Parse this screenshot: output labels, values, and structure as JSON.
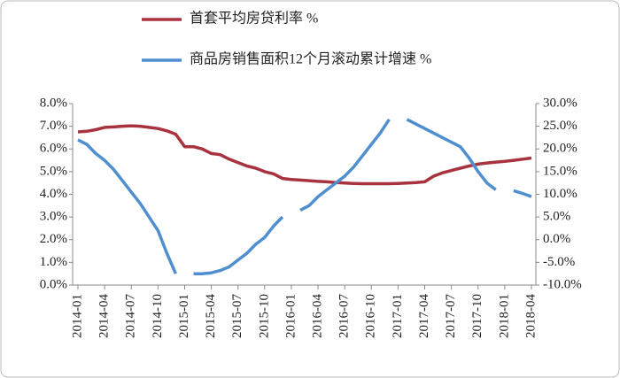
{
  "chart_data": {
    "type": "line",
    "categories": [
      "2014-01",
      null,
      null,
      "2014-04",
      null,
      null,
      "2014-07",
      null,
      null,
      "2014-10",
      null,
      null,
      "2015-01",
      null,
      null,
      "2015-04",
      null,
      null,
      "2015-07",
      null,
      null,
      "2015-10",
      null,
      null,
      "2016-01",
      null,
      null,
      "2016-04",
      null,
      null,
      "2016-07",
      null,
      null,
      "2016-10",
      null,
      null,
      "2017-01",
      null,
      null,
      "2017-04",
      null,
      null,
      "2017-07",
      null,
      null,
      "2017-10",
      null,
      null,
      "2018-01",
      null,
      null,
      "2018-04"
    ],
    "series": [
      {
        "name": "首套平均房贷利率 %",
        "color": "#a8323e",
        "axis": "y",
        "values": [
          6.75,
          6.78,
          6.85,
          6.95,
          6.97,
          7.0,
          7.02,
          7.0,
          6.95,
          6.9,
          6.8,
          6.65,
          6.1,
          6.1,
          6.0,
          5.8,
          5.75,
          5.55,
          5.4,
          5.25,
          5.15,
          5.0,
          4.9,
          4.7,
          4.65,
          4.63,
          4.6,
          4.57,
          4.55,
          4.52,
          4.5,
          4.48,
          4.47,
          4.47,
          4.47,
          4.47,
          4.48,
          4.5,
          4.52,
          4.55,
          4.8,
          4.95,
          5.05,
          5.15,
          5.25,
          5.33,
          5.38,
          5.42,
          5.45,
          5.5,
          5.55,
          5.6
        ]
      },
      {
        "name": "商品房销售面积12个月滚动累计增速 %",
        "color": "#4f8fd0",
        "axis": "y2",
        "values": [
          22,
          21,
          19,
          17.5,
          15.5,
          13,
          10.5,
          8,
          5,
          2,
          -3,
          -7.5,
          null,
          -7.5,
          -7.5,
          -7.3,
          -6.8,
          -6,
          -4.5,
          -3,
          -1,
          0.5,
          3,
          5,
          null,
          6.5,
          7.5,
          9.5,
          11,
          12.5,
          14,
          16,
          18.5,
          21,
          23.5,
          26.5,
          null,
          26.5,
          25.5,
          24.5,
          23.5,
          22.5,
          21.5,
          20.5,
          18,
          15,
          12.5,
          11,
          null,
          10.8,
          10.2,
          9.5
        ]
      }
    ],
    "ylim": [
      0,
      8
    ],
    "yticks": [
      {
        "value": 0,
        "label": "0.0%"
      },
      {
        "value": 1,
        "label": "1.0%"
      },
      {
        "value": 2,
        "label": "2.0%"
      },
      {
        "value": 3,
        "label": "3.0%"
      },
      {
        "value": 4,
        "label": "4.0%"
      },
      {
        "value": 5,
        "label": "5.0%"
      },
      {
        "value": 6,
        "label": "6.0%"
      },
      {
        "value": 7,
        "label": "7.0%"
      },
      {
        "value": 8,
        "label": "8.0%"
      }
    ],
    "y2lim": [
      -10,
      30
    ],
    "y2ticks": [
      {
        "value": -10,
        "label": "-10.0%"
      },
      {
        "value": -5,
        "label": "-5.0%"
      },
      {
        "value": 0,
        "label": "0.0%"
      },
      {
        "value": 5,
        "label": "5.0%"
      },
      {
        "value": 10,
        "label": "10.0%"
      },
      {
        "value": 15,
        "label": "15.0%"
      },
      {
        "value": 20,
        "label": "20.0%"
      },
      {
        "value": 25,
        "label": "25.0%"
      },
      {
        "value": 30,
        "label": "30.0%"
      }
    ],
    "legend": "top"
  }
}
